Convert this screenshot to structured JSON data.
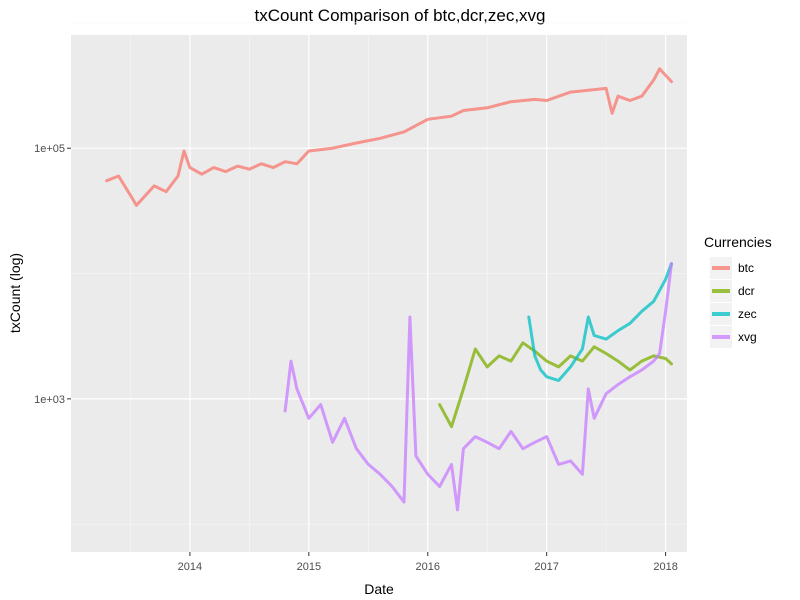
{
  "chart_data": {
    "type": "line",
    "title": "txCount Comparison of  btc,dcr,zec,xvg",
    "xlabel": "Date",
    "ylabel": "txCount (log)",
    "y_scale": "log10",
    "xlim": [
      2013.0,
      2018.18
    ],
    "ylim": [
      60,
      800000
    ],
    "x_ticks": [
      2014,
      2015,
      2016,
      2017,
      2018
    ],
    "y_ticks": [
      {
        "value": 1000,
        "label": "1e+03"
      },
      {
        "value": 100000,
        "label": "1e+05"
      }
    ],
    "grid": true,
    "legend": {
      "title": "Currencies",
      "position": "right"
    },
    "series": [
      {
        "name": "btc",
        "color": "#F8766D",
        "x": [
          2013.3,
          2013.4,
          2013.5,
          2013.55,
          2013.7,
          2013.8,
          2013.9,
          2013.95,
          2014.0,
          2014.1,
          2014.2,
          2014.3,
          2014.4,
          2014.5,
          2014.6,
          2014.7,
          2014.8,
          2014.9,
          2015.0,
          2015.2,
          2015.4,
          2015.6,
          2015.8,
          2016.0,
          2016.2,
          2016.3,
          2016.5,
          2016.7,
          2016.9,
          2017.0,
          2017.2,
          2017.35,
          2017.5,
          2017.55,
          2017.6,
          2017.7,
          2017.8,
          2017.9,
          2017.95,
          2018.05
        ],
        "y": [
          55000,
          60000,
          42000,
          35000,
          50000,
          45000,
          60000,
          95000,
          70000,
          62000,
          70000,
          65000,
          72000,
          68000,
          75000,
          70000,
          78000,
          75000,
          95000,
          100000,
          110000,
          120000,
          135000,
          170000,
          180000,
          200000,
          210000,
          235000,
          245000,
          240000,
          280000,
          290000,
          300000,
          190000,
          260000,
          240000,
          260000,
          350000,
          430000,
          340000
        ]
      },
      {
        "name": "dcr",
        "color": "#7CAE00",
        "x": [
          2016.1,
          2016.2,
          2016.3,
          2016.4,
          2016.5,
          2016.6,
          2016.7,
          2016.8,
          2016.9,
          2017.0,
          2017.1,
          2017.2,
          2017.3,
          2017.4,
          2017.5,
          2017.6,
          2017.7,
          2017.8,
          2017.9,
          2018.0,
          2018.05
        ],
        "y": [
          900,
          600,
          1200,
          2500,
          1800,
          2200,
          2000,
          2800,
          2400,
          2000,
          1800,
          2200,
          2000,
          2600,
          2300,
          2000,
          1700,
          2000,
          2200,
          2100,
          1900
        ]
      },
      {
        "name": "zec",
        "color": "#00BFC4",
        "x": [
          2016.85,
          2016.9,
          2016.95,
          2017.0,
          2017.1,
          2017.2,
          2017.3,
          2017.35,
          2017.4,
          2017.5,
          2017.6,
          2017.7,
          2017.8,
          2017.9,
          2018.0,
          2018.05
        ],
        "y": [
          4500,
          2200,
          1700,
          1500,
          1400,
          1800,
          2500,
          4500,
          3200,
          3000,
          3500,
          4000,
          5000,
          6000,
          9000,
          12000
        ]
      },
      {
        "name": "xvg",
        "color": "#C77CFF",
        "x": [
          2014.8,
          2014.85,
          2014.9,
          2015.0,
          2015.1,
          2015.2,
          2015.3,
          2015.4,
          2015.5,
          2015.6,
          2015.7,
          2015.8,
          2015.85,
          2015.9,
          2016.0,
          2016.1,
          2016.2,
          2016.25,
          2016.3,
          2016.4,
          2016.5,
          2016.6,
          2016.7,
          2016.8,
          2016.9,
          2017.0,
          2017.1,
          2017.2,
          2017.3,
          2017.35,
          2017.4,
          2017.5,
          2017.6,
          2017.7,
          2017.8,
          2017.9,
          2017.95,
          2018.0,
          2018.05
        ],
        "y": [
          800,
          2000,
          1200,
          700,
          900,
          450,
          700,
          400,
          300,
          250,
          200,
          150,
          4500,
          350,
          250,
          200,
          300,
          130,
          400,
          500,
          450,
          400,
          550,
          400,
          450,
          500,
          300,
          320,
          250,
          1200,
          700,
          1100,
          1300,
          1500,
          1700,
          2000,
          2300,
          5000,
          12000
        ]
      }
    ]
  }
}
